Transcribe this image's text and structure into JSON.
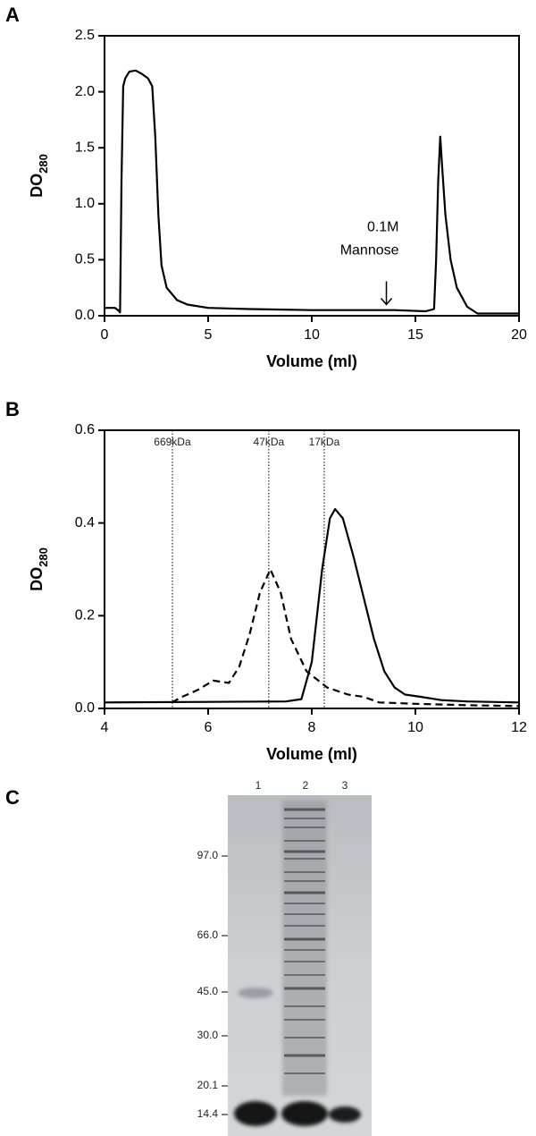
{
  "chart_data": [
    {
      "type": "line",
      "panel": "A",
      "xlabel": "Volume (ml)",
      "ylabel": {
        "text": "DO",
        "subscript": "280"
      },
      "xlim": [
        0,
        20
      ],
      "xticks": [
        0,
        5,
        10,
        15,
        20
      ],
      "ylim": [
        0,
        2.5
      ],
      "yticks": [
        {
          "value": 0,
          "label": "0.0"
        },
        0.5,
        {
          "value": 1,
          "label": "1.0"
        },
        1.5,
        {
          "value": 2,
          "label": "2.0"
        },
        2.5
      ],
      "series": [
        {
          "color": "#000000",
          "dash": "solid",
          "x": [
            0,
            0.5,
            0.65,
            0.75,
            0.82,
            0.9,
            1.0,
            1.2,
            1.5,
            1.8,
            2.1,
            2.3,
            2.45,
            2.6,
            2.75,
            3.0,
            3.5,
            4.0,
            5.0,
            7.0,
            10.0,
            14.0,
            15.5,
            15.9,
            16.0,
            16.1,
            16.2,
            16.3,
            16.45,
            16.7,
            17.0,
            17.5,
            18.0,
            20.0
          ],
          "values": [
            0.07,
            0.07,
            0.05,
            0.03,
            1.2,
            2.05,
            2.12,
            2.18,
            2.19,
            2.16,
            2.12,
            2.05,
            1.6,
            0.9,
            0.45,
            0.25,
            0.14,
            0.1,
            0.07,
            0.06,
            0.05,
            0.05,
            0.04,
            0.06,
            0.5,
            1.2,
            1.6,
            1.3,
            0.9,
            0.5,
            0.25,
            0.08,
            0.02,
            0.02
          ]
        }
      ],
      "annotations": [
        {
          "lines": [
            "0.1M",
            "Mannose"
          ],
          "x": 13.6,
          "y": 0.1
        }
      ]
    },
    {
      "type": "line",
      "panel": "B",
      "xlabel": "Volume (ml)",
      "ylabel": {
        "text": "DO",
        "subscript": "280"
      },
      "xlim": [
        4,
        12
      ],
      "xticks": [
        4,
        6,
        8,
        10,
        12
      ],
      "ylim": [
        0,
        0.6
      ],
      "yticks": [
        {
          "value": 0,
          "label": "0.0"
        },
        0.2,
        0.4,
        0.6
      ],
      "reference_lines": [
        {
          "x": 5.31,
          "label": "669kDa"
        },
        {
          "x": 7.17,
          "label": "47kDa"
        },
        {
          "x": 8.24,
          "label": "17kDa"
        }
      ],
      "series": [
        {
          "color": "#000000",
          "dash": "solid",
          "x": [
            4,
            6,
            7.5,
            7.8,
            8.0,
            8.2,
            8.35,
            8.45,
            8.6,
            8.8,
            9.0,
            9.2,
            9.4,
            9.6,
            9.8,
            10.1,
            10.5,
            11,
            12
          ],
          "values": [
            0.013,
            0.014,
            0.015,
            0.02,
            0.1,
            0.3,
            0.41,
            0.43,
            0.41,
            0.33,
            0.24,
            0.15,
            0.08,
            0.045,
            0.03,
            0.025,
            0.018,
            0.015,
            0.013
          ]
        },
        {
          "color": "#000000",
          "dash": "dashed",
          "x": [
            5.3,
            5.5,
            5.8,
            6.1,
            6.4,
            6.6,
            6.8,
            7.0,
            7.2,
            7.4,
            7.6,
            7.9,
            8.3,
            8.7,
            9.0,
            9.3,
            10,
            11,
            12
          ],
          "values": [
            0.013,
            0.025,
            0.04,
            0.06,
            0.055,
            0.09,
            0.16,
            0.25,
            0.3,
            0.25,
            0.15,
            0.08,
            0.045,
            0.03,
            0.025,
            0.013,
            0.01,
            0.007,
            0.005
          ]
        }
      ]
    }
  ],
  "gel": {
    "panel": "C",
    "lanes": [
      "1",
      "2",
      "3"
    ],
    "markers": [
      "97.0",
      "66.0",
      "45.0",
      "30.0",
      "20.1",
      "14.4"
    ]
  }
}
